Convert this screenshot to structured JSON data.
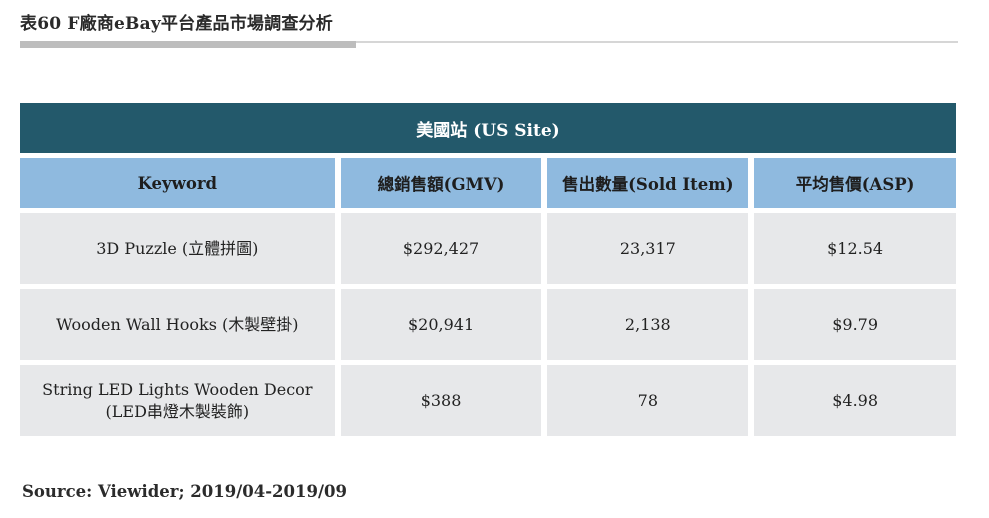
{
  "title": "表60 F廠商eBay平台產品市場調查分析",
  "table": {
    "site_header": "美國站 (US Site)",
    "columns": [
      "Keyword",
      "總銷售額(GMV)",
      "售出數量(Sold Item)",
      "平均售價(ASP)"
    ],
    "rows": [
      {
        "keyword": "3D Puzzle (立體拼圖)",
        "keyword_line2": "",
        "gmv": "$292,427",
        "sold": "23,317",
        "asp": "$12.54"
      },
      {
        "keyword": "Wooden Wall Hooks (木製壁掛)",
        "keyword_line2": "",
        "gmv": "$20,941",
        "sold": "2,138",
        "asp": "$9.79"
      },
      {
        "keyword": "String LED Lights Wooden Decor",
        "keyword_line2": "(LED串燈木製裝飾)",
        "gmv": "$388",
        "sold": "78",
        "asp": "$4.98"
      }
    ]
  },
  "source": "Source: Viewider; 2019/04-2019/09",
  "colors": {
    "site_header_bg": "#23596b",
    "column_header_bg": "#8fbadf",
    "row_bg": "#e7e8ea",
    "title_bar": "#bdbdbd"
  }
}
